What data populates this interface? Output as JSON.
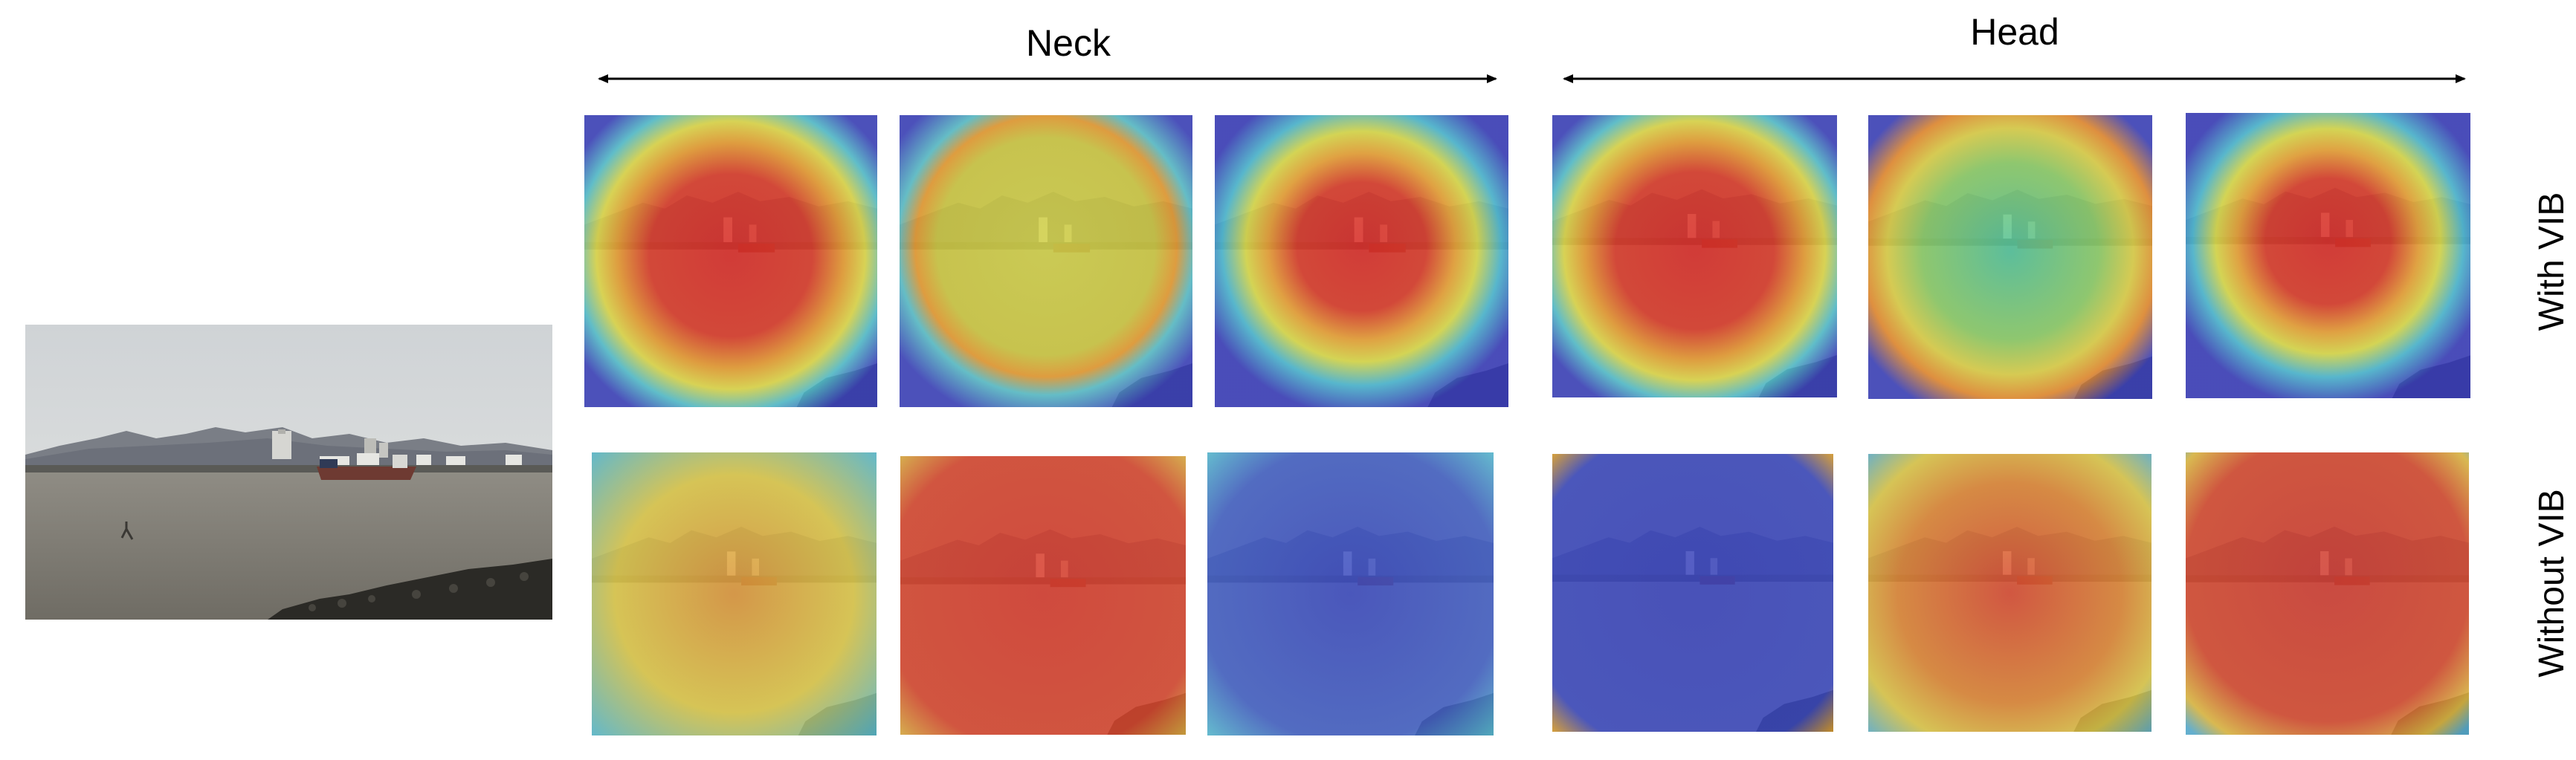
{
  "headers": {
    "neck": "Neck",
    "head": "Head"
  },
  "row_labels": {
    "with": "With VIB",
    "without": "Without VIB"
  },
  "colors": {
    "sky": "#d7dadd",
    "water": "#85827a",
    "mountain": "#6f7381",
    "heat_blue": "#3a44c8",
    "heat_red": "#e0302a",
    "heat_yellow": "#e9d74a"
  },
  "heatmaps": [
    {
      "id": "neck-1-with",
      "group": "neck",
      "row": "with",
      "pattern": "radial",
      "cy": 0.48,
      "spread": "wide",
      "core": "red"
    },
    {
      "id": "neck-2-with",
      "group": "neck",
      "row": "with",
      "pattern": "radial",
      "cy": 0.42,
      "spread": "wide",
      "core": "yellow"
    },
    {
      "id": "neck-3-with",
      "group": "neck",
      "row": "with",
      "pattern": "radial",
      "cy": 0.45,
      "spread": "medium",
      "core": "red"
    },
    {
      "id": "head-1-with",
      "group": "head",
      "row": "with",
      "pattern": "radial",
      "cy": 0.45,
      "spread": "wide",
      "core": "red"
    },
    {
      "id": "head-2-with",
      "group": "head",
      "row": "with",
      "pattern": "radial",
      "cy": 0.45,
      "spread": "wide",
      "core": "teal"
    },
    {
      "id": "head-3-with",
      "group": "head",
      "row": "with",
      "pattern": "radial",
      "cy": 0.42,
      "spread": "medium",
      "core": "red"
    },
    {
      "id": "neck-1-without",
      "group": "neck",
      "row": "without",
      "pattern": "uniform",
      "fill": "yellow"
    },
    {
      "id": "neck-2-without",
      "group": "neck",
      "row": "without",
      "pattern": "uniform",
      "fill": "red"
    },
    {
      "id": "neck-3-without",
      "group": "neck",
      "row": "without",
      "pattern": "uniform",
      "fill": "blue"
    },
    {
      "id": "head-1-without",
      "group": "head",
      "row": "without",
      "pattern": "uniform",
      "fill": "blue"
    },
    {
      "id": "head-2-without",
      "group": "head",
      "row": "without",
      "pattern": "uniform",
      "fill": "orange"
    },
    {
      "id": "head-3-without",
      "group": "head",
      "row": "without",
      "pattern": "uniform",
      "fill": "red"
    }
  ]
}
